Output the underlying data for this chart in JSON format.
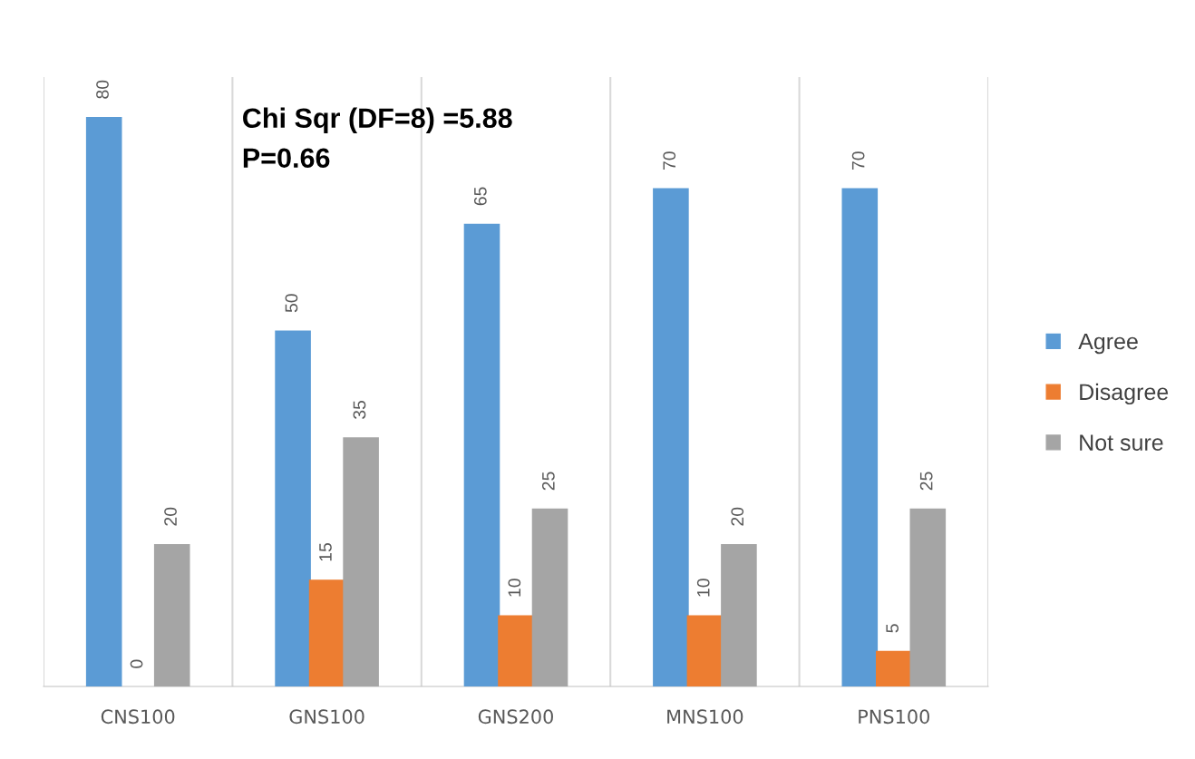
{
  "chart_data": {
    "type": "bar",
    "categories": [
      "CNS100",
      "GNS100",
      "GNS200",
      "MNS100",
      "PNS100"
    ],
    "series": [
      {
        "name": "Agree",
        "color": "#5b9bd5",
        "values": [
          80,
          50,
          65,
          70,
          70
        ]
      },
      {
        "name": "Disagree",
        "color": "#ed7d31",
        "values": [
          0,
          15,
          10,
          10,
          5
        ]
      },
      {
        "name": "Not sure",
        "color": "#a5a5a5",
        "values": [
          20,
          35,
          25,
          20,
          25
        ]
      }
    ],
    "data_labels": true,
    "annotations": [
      "Chi Sqr (DF=8) =5.88\nP=0.66"
    ],
    "grid": "x",
    "legend": "right",
    "tick_labels": "x"
  }
}
